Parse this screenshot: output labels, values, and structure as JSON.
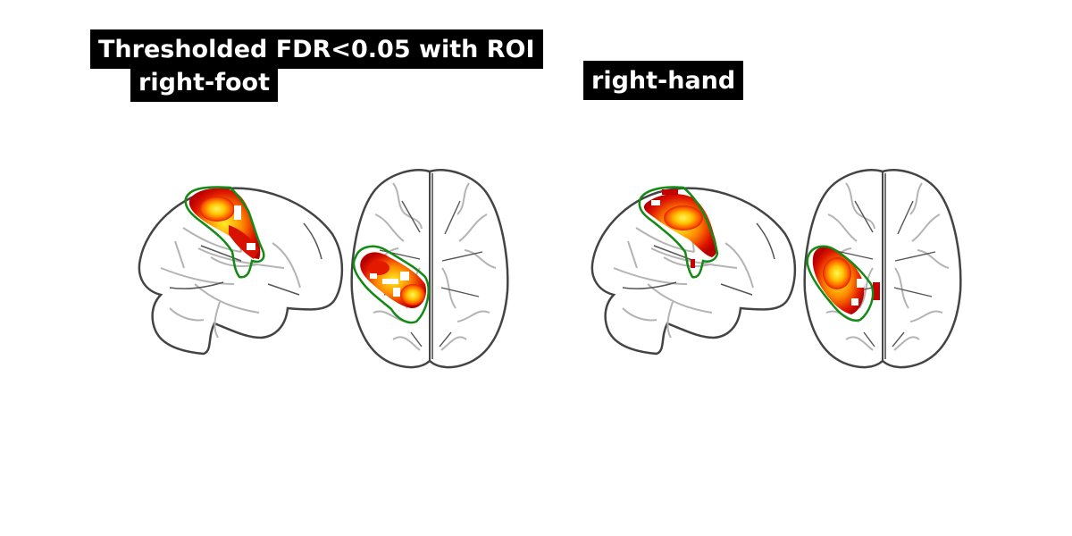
{
  "figure": {
    "title": "Thresholded FDR<0.05 with ROI",
    "panels": [
      {
        "label": "right-foot"
      },
      {
        "label": "right-hand"
      }
    ]
  },
  "colors": {
    "background": "#ffffff",
    "label_background": "#000000",
    "label_text": "#ffffff",
    "brain_outline": "#444444",
    "brain_gyri": "#b4b4b4",
    "roi_contour": "#138a13",
    "activation_low": "#b80000",
    "activation_mid": "#ff5a00",
    "activation_high": "#ffee22"
  },
  "views": [
    "sagittal",
    "axial"
  ]
}
